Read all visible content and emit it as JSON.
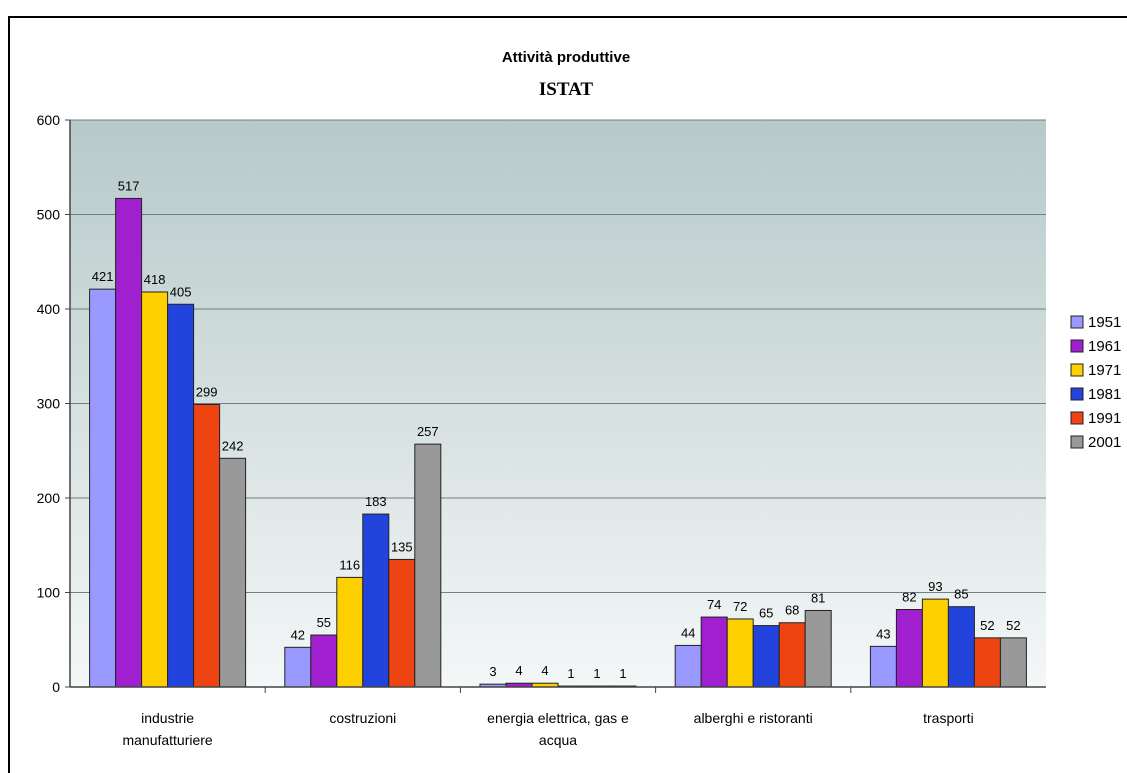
{
  "chart_data": {
    "type": "bar",
    "title": "Attività produttive",
    "subtitle": "ISTAT",
    "xlabel": "",
    "ylabel": "",
    "ylim": [
      0,
      600
    ],
    "yticks": [
      0,
      100,
      200,
      300,
      400,
      500,
      600
    ],
    "grid": true,
    "legend_position": "right",
    "categories": [
      [
        "industrie",
        "manufatturiere"
      ],
      [
        "costruzioni"
      ],
      [
        "energia elettrica, gas e",
        "acqua"
      ],
      [
        "alberghi e ristoranti"
      ],
      [
        "trasporti"
      ]
    ],
    "series": [
      {
        "name": "1951",
        "color": "#9999ff",
        "values": [
          421,
          42,
          3,
          44,
          43
        ]
      },
      {
        "name": "1961",
        "color": "#a020d0",
        "values": [
          517,
          55,
          4,
          74,
          82
        ]
      },
      {
        "name": "1971",
        "color": "#ffd000",
        "values": [
          418,
          116,
          4,
          72,
          93
        ]
      },
      {
        "name": "1981",
        "color": "#2244dd",
        "values": [
          405,
          183,
          1,
          65,
          85
        ]
      },
      {
        "name": "1991",
        "color": "#ee4411",
        "values": [
          299,
          135,
          1,
          68,
          52
        ]
      },
      {
        "name": "2001",
        "color": "#999999",
        "values": [
          242,
          257,
          1,
          81,
          52
        ]
      }
    ]
  }
}
